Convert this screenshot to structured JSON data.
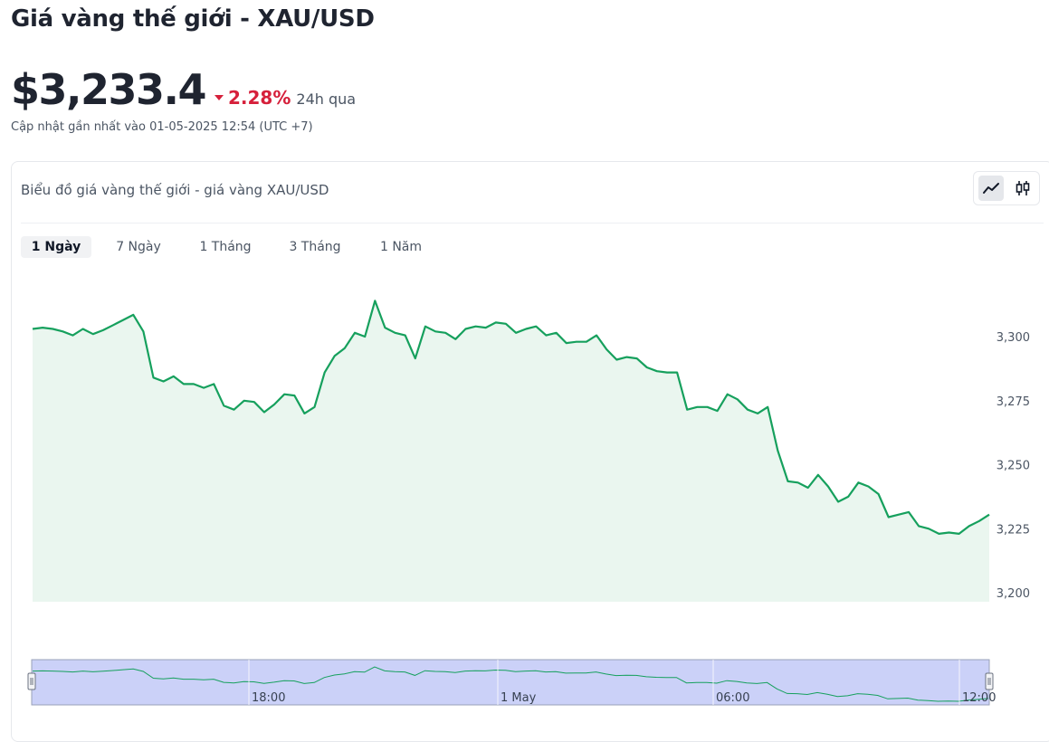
{
  "page": {
    "title": "Giá vàng thế giới - XAU/USD",
    "price": "$3,233.4",
    "change": "2.28%",
    "change_period": "24h qua",
    "updated": "Cập nhật gần nhất vào 01-05-2025 12:54 (UTC +7)"
  },
  "card": {
    "title": "Biểu đồ giá vàng thế giới - giá vàng XAU/USD",
    "chart_type_buttons": [
      {
        "name": "line-chart-button",
        "icon": "line-chart-icon",
        "active": true
      },
      {
        "name": "candlestick-button",
        "icon": "candlestick-icon",
        "active": false
      }
    ],
    "tabs": [
      {
        "label": "1 Ngày",
        "active": true
      },
      {
        "label": "7 Ngày",
        "active": false
      },
      {
        "label": "1 Tháng",
        "active": false
      },
      {
        "label": "3 Tháng",
        "active": false
      },
      {
        "label": "1 Năm",
        "active": false
      }
    ]
  },
  "colors": {
    "line": "#16a05d",
    "area": "#eaf6ef",
    "navigator": "#cbd1f8",
    "negative": "#d6203b"
  },
  "chart_data": {
    "type": "area",
    "title": "",
    "xlabel": "",
    "ylabel": "",
    "ylim": [
      3200,
      3310
    ],
    "yticks": [
      3200,
      3225,
      3250,
      3275,
      3300
    ],
    "ytick_labels": [
      "3,200",
      "3,225",
      "3,250",
      "3,275",
      "3,300"
    ],
    "navigator_ticks": [
      "18:00",
      "1 May",
      "06:00",
      "12:00"
    ],
    "series": [
      {
        "values": [
          3303.0,
          3303.5,
          3303.0,
          3302.0,
          3300.5,
          3303.0,
          3301.0,
          3302.5,
          3304.5,
          3306.5,
          3308.5,
          3302.0,
          3284.0,
          3282.5,
          3284.5,
          3281.5,
          3281.5,
          3280.0,
          3281.5,
          3273.0,
          3271.5,
          3275.0,
          3274.5,
          3270.5,
          3273.5,
          3277.5,
          3277.0,
          3270.0,
          3272.5,
          3286.0,
          3292.5,
          3295.5,
          3301.5,
          3300.0,
          3314.0,
          3303.5,
          3301.5,
          3300.5,
          3291.5,
          3304.0,
          3302.0,
          3301.5,
          3299.0,
          3303.0,
          3304.0,
          3303.5,
          3305.5,
          3305.0,
          3301.5,
          3303.0,
          3304.0,
          3300.5,
          3301.5,
          3297.5,
          3298.0,
          3298.0,
          3300.5,
          3295.0,
          3291.0,
          3292.0,
          3291.5,
          3288.0,
          3286.5,
          3286.0,
          3286.0,
          3271.5,
          3272.5,
          3272.5,
          3271.0,
          3277.5,
          3275.5,
          3271.5,
          3270.0,
          3272.5,
          3255.5,
          3243.5,
          3243.0,
          3241.0,
          3246.0,
          3241.5,
          3235.5,
          3237.5,
          3243.0,
          3241.5,
          3238.5,
          3229.5,
          3230.5,
          3231.5,
          3226.0,
          3225.0,
          3223.0,
          3223.5,
          3223.0,
          3226.0,
          3228.0,
          3230.5
        ]
      }
    ]
  }
}
